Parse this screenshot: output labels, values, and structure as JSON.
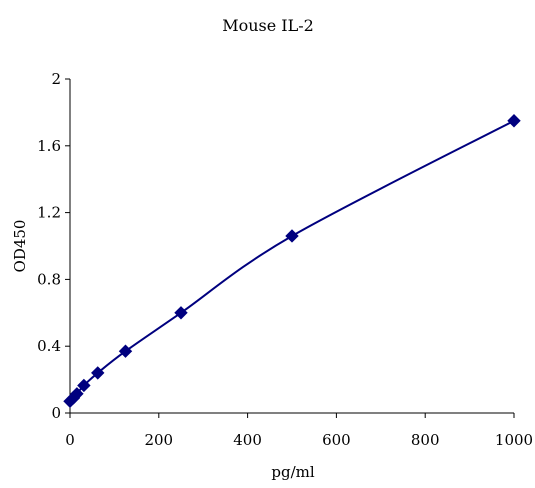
{
  "chart_data": {
    "type": "scatter",
    "title": "Mouse IL-2",
    "xlabel": "pg/ml",
    "ylabel": "OD450",
    "xlim": [
      0,
      1000
    ],
    "ylim": [
      0,
      2
    ],
    "xticks": [
      0,
      200,
      400,
      600,
      800,
      1000
    ],
    "xtick_labels": [
      "0",
      "200",
      "400",
      "600",
      "800",
      "1000"
    ],
    "yticks": [
      0,
      0.4,
      0.8,
      1.2,
      1.6,
      2
    ],
    "ytick_labels": [
      "0",
      "0.4",
      "0.8",
      "1.2",
      "1.6",
      "2"
    ],
    "grid": false,
    "legend": "none",
    "marker": "diamond",
    "series_color": "#00007f",
    "series": [
      {
        "x": [
          0,
          7.8,
          15.6,
          31.25,
          62.5,
          125,
          250,
          500,
          1000
        ],
        "y": [
          0.07,
          0.09,
          0.115,
          0.165,
          0.24,
          0.37,
          0.6,
          1.06,
          1.75
        ],
        "fit_curve": true
      }
    ]
  }
}
